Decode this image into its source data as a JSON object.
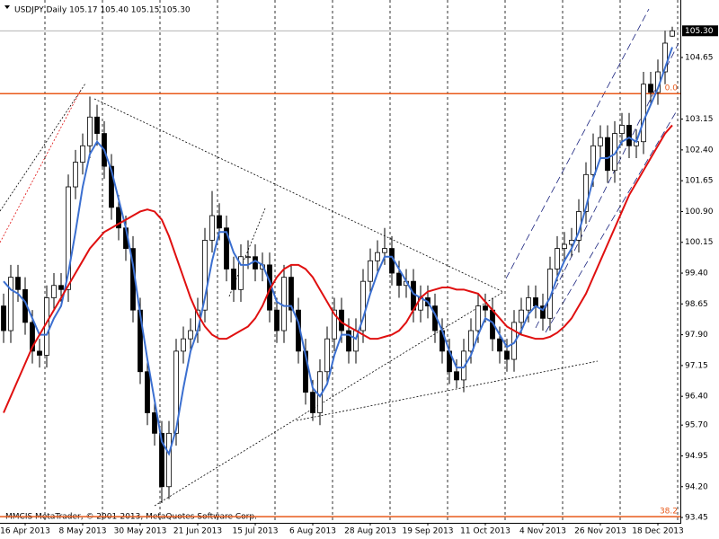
{
  "chart_data": {
    "type": "candlestick",
    "title": "USDJPY,Daily  105.17 105.40 105.15 105.30",
    "footer": "MMCIS MetaTrader, © 2001-2013, MetaQuotes Software Corp.",
    "categories": [
      null,
      null,
      null,
      "16 Apr 2013",
      null,
      null,
      null,
      null,
      null,
      null,
      null,
      "8 May 2013",
      null,
      null,
      null,
      null,
      null,
      null,
      null,
      "30 May 2013",
      null,
      null,
      null,
      null,
      null,
      null,
      null,
      "21 Jun 2013",
      null,
      null,
      null,
      null,
      null,
      null,
      null,
      "15 Jul 2013",
      null,
      null,
      null,
      null,
      null,
      null,
      null,
      "6 Aug 2013",
      null,
      null,
      null,
      null,
      null,
      null,
      null,
      "28 Aug 2013",
      null,
      null,
      null,
      null,
      null,
      null,
      null,
      "19 Sep 2013",
      null,
      null,
      null,
      null,
      null,
      null,
      null,
      "11 Oct 2013",
      null,
      null,
      null,
      null,
      null,
      null,
      null,
      "4 Nov 2013",
      null,
      null,
      null,
      null,
      null,
      null,
      null,
      "26 Nov 2013",
      null,
      null,
      null,
      null,
      null,
      null,
      null,
      "18 Dec 2013",
      null,
      null
    ],
    "candles": [
      [
        98.6,
        98.9,
        97.7,
        98.0
      ],
      [
        98.0,
        99.6,
        97.7,
        99.3
      ],
      [
        99.3,
        99.6,
        98.7,
        99.0
      ],
      [
        99.0,
        99.3,
        97.9,
        98.2
      ],
      [
        98.2,
        98.5,
        97.2,
        97.5
      ],
      [
        97.5,
        97.8,
        97.1,
        97.4
      ],
      [
        97.4,
        99.1,
        97.1,
        98.8
      ],
      [
        98.8,
        99.4,
        98.5,
        99.1
      ],
      [
        99.1,
        99.4,
        98.7,
        99.0
      ],
      [
        99.0,
        101.8,
        98.7,
        101.5
      ],
      [
        101.5,
        102.4,
        101.2,
        102.1
      ],
      [
        102.1,
        102.8,
        101.8,
        102.5
      ],
      [
        102.5,
        103.7,
        102.2,
        103.2
      ],
      [
        103.2,
        103.5,
        102.5,
        102.8
      ],
      [
        102.8,
        103.1,
        101.7,
        102.0
      ],
      [
        102.0,
        102.3,
        100.7,
        101.0
      ],
      [
        101.0,
        101.3,
        100.2,
        100.5
      ],
      [
        100.5,
        100.8,
        99.7,
        100.0
      ],
      [
        100.0,
        100.3,
        98.2,
        98.5
      ],
      [
        98.5,
        98.8,
        96.7,
        97.0
      ],
      [
        97.0,
        97.3,
        95.7,
        96.0
      ],
      [
        96.0,
        96.3,
        95.2,
        95.5
      ],
      [
        95.5,
        95.8,
        93.8,
        94.2
      ],
      [
        94.2,
        95.8,
        93.9,
        95.5
      ],
      [
        95.5,
        97.8,
        95.2,
        97.5
      ],
      [
        97.5,
        98.1,
        97.2,
        97.8
      ],
      [
        97.8,
        98.3,
        97.5,
        98.0
      ],
      [
        98.0,
        98.8,
        97.7,
        98.5
      ],
      [
        98.5,
        100.5,
        98.2,
        100.2
      ],
      [
        100.2,
        101.4,
        99.9,
        100.8
      ],
      [
        100.8,
        101.1,
        100.2,
        100.5
      ],
      [
        100.5,
        100.8,
        99.2,
        99.5
      ],
      [
        99.5,
        99.8,
        98.7,
        99.0
      ],
      [
        99.0,
        100.1,
        98.7,
        99.8
      ],
      [
        99.8,
        100.2,
        99.5,
        99.8
      ],
      [
        99.8,
        100.1,
        99.2,
        99.5
      ],
      [
        99.5,
        99.9,
        99.2,
        99.6
      ],
      [
        99.6,
        99.9,
        98.2,
        98.5
      ],
      [
        98.5,
        98.8,
        97.7,
        98.0
      ],
      [
        98.0,
        99.6,
        97.7,
        99.3
      ],
      [
        99.3,
        99.6,
        98.2,
        98.5
      ],
      [
        98.5,
        98.8,
        97.2,
        97.5
      ],
      [
        97.5,
        97.8,
        96.2,
        96.5
      ],
      [
        96.5,
        96.8,
        95.8,
        96.0
      ],
      [
        96.0,
        97.3,
        95.7,
        97.0
      ],
      [
        97.0,
        98.1,
        96.7,
        97.8
      ],
      [
        97.8,
        98.8,
        97.5,
        98.5
      ],
      [
        98.5,
        98.8,
        97.7,
        98.0
      ],
      [
        98.0,
        98.3,
        97.2,
        97.5
      ],
      [
        97.5,
        98.3,
        97.2,
        98.0
      ],
      [
        98.0,
        99.5,
        97.7,
        99.2
      ],
      [
        99.2,
        100.0,
        98.9,
        99.7
      ],
      [
        99.7,
        100.2,
        99.4,
        99.9
      ],
      [
        99.9,
        100.5,
        99.6,
        100.0
      ],
      [
        100.0,
        100.3,
        99.1,
        99.4
      ],
      [
        99.4,
        99.7,
        98.8,
        99.1
      ],
      [
        99.1,
        99.5,
        98.8,
        99.2
      ],
      [
        99.2,
        99.5,
        98.2,
        98.5
      ],
      [
        98.5,
        99.1,
        98.2,
        98.8
      ],
      [
        98.8,
        99.1,
        98.3,
        98.6
      ],
      [
        98.6,
        98.9,
        97.7,
        98.0
      ],
      [
        98.0,
        98.3,
        97.2,
        97.5
      ],
      [
        97.5,
        97.8,
        96.7,
        97.0
      ],
      [
        97.0,
        97.3,
        96.6,
        96.8
      ],
      [
        96.8,
        97.8,
        96.5,
        97.5
      ],
      [
        97.5,
        98.3,
        97.2,
        98.0
      ],
      [
        98.0,
        98.9,
        97.7,
        98.6
      ],
      [
        98.6,
        98.9,
        98.2,
        98.5
      ],
      [
        98.5,
        98.8,
        97.5,
        97.8
      ],
      [
        97.8,
        98.1,
        97.2,
        97.5
      ],
      [
        97.5,
        97.8,
        97.0,
        97.3
      ],
      [
        97.3,
        98.5,
        97.0,
        98.2
      ],
      [
        98.2,
        98.8,
        97.9,
        98.5
      ],
      [
        98.5,
        99.1,
        98.2,
        98.8
      ],
      [
        98.8,
        99.1,
        98.3,
        98.6
      ],
      [
        98.6,
        98.9,
        98.0,
        98.3
      ],
      [
        98.3,
        99.8,
        98.0,
        99.5
      ],
      [
        99.5,
        100.3,
        99.2,
        100.0
      ],
      [
        100.0,
        100.4,
        99.7,
        100.1
      ],
      [
        100.1,
        100.5,
        99.8,
        100.2
      ],
      [
        100.2,
        101.2,
        99.9,
        100.9
      ],
      [
        100.9,
        102.1,
        100.6,
        101.8
      ],
      [
        101.8,
        102.8,
        101.5,
        102.5
      ],
      [
        102.5,
        103.0,
        102.2,
        102.7
      ],
      [
        102.7,
        103.0,
        101.6,
        101.9
      ],
      [
        101.9,
        103.1,
        101.6,
        102.8
      ],
      [
        102.8,
        103.3,
        102.5,
        103.0
      ],
      [
        103.0,
        103.3,
        102.2,
        102.5
      ],
      [
        102.5,
        102.9,
        102.2,
        102.6
      ],
      [
        102.6,
        104.3,
        102.3,
        104.0
      ],
      [
        104.0,
        104.3,
        103.5,
        103.8
      ],
      [
        103.8,
        104.6,
        103.5,
        104.3
      ],
      [
        104.3,
        105.3,
        104.0,
        105.0
      ],
      [
        105.17,
        105.4,
        105.15,
        105.3
      ]
    ],
    "lines": [
      {
        "color": "#3b6fd0",
        "values": [
          99.2,
          99.0,
          98.9,
          98.7,
          98.3,
          97.9,
          97.9,
          98.3,
          98.6,
          99.4,
          100.4,
          101.5,
          102.3,
          102.6,
          102.4,
          101.9,
          101.2,
          100.5,
          99.6,
          98.4,
          97.3,
          96.3,
          95.3,
          95.0,
          95.6,
          96.6,
          97.5,
          98.0,
          98.8,
          99.7,
          100.4,
          100.4,
          99.9,
          99.6,
          99.6,
          99.7,
          99.6,
          99.2,
          98.7,
          98.6,
          98.6,
          98.2,
          97.4,
          96.6,
          96.4,
          96.7,
          97.4,
          97.9,
          97.9,
          97.8,
          98.3,
          98.9,
          99.4,
          99.8,
          99.8,
          99.5,
          99.2,
          98.9,
          98.8,
          98.7,
          98.4,
          98.0,
          97.5,
          97.1,
          97.1,
          97.4,
          97.9,
          98.3,
          98.2,
          97.9,
          97.6,
          97.7,
          98.0,
          98.4,
          98.6,
          98.5,
          98.8,
          99.3,
          99.7,
          100.0,
          100.4,
          101.0,
          101.7,
          102.2,
          102.2,
          102.3,
          102.6,
          102.7,
          102.6,
          103.1,
          103.5,
          103.9,
          104.4,
          104.9
        ]
      },
      {
        "color": "#e01010",
        "values": [
          96.0,
          96.4,
          96.8,
          97.2,
          97.6,
          97.9,
          98.2,
          98.5,
          98.8,
          99.1,
          99.4,
          99.7,
          100.0,
          100.2,
          100.4,
          100.5,
          100.6,
          100.7,
          100.8,
          100.9,
          100.95,
          100.9,
          100.7,
          100.3,
          99.8,
          99.3,
          98.8,
          98.4,
          98.1,
          97.9,
          97.8,
          97.8,
          97.9,
          98.0,
          98.1,
          98.3,
          98.6,
          99.0,
          99.3,
          99.5,
          99.6,
          99.6,
          99.5,
          99.3,
          99.0,
          98.7,
          98.4,
          98.2,
          98.1,
          98.0,
          97.9,
          97.8,
          97.8,
          97.85,
          97.9,
          98.0,
          98.2,
          98.5,
          98.8,
          98.95,
          99.0,
          99.05,
          99.05,
          99.0,
          99.0,
          98.95,
          98.9,
          98.7,
          98.5,
          98.3,
          98.1,
          98.0,
          97.9,
          97.85,
          97.8,
          97.8,
          97.85,
          97.95,
          98.1,
          98.3,
          98.6,
          98.9,
          99.3,
          99.7,
          100.1,
          100.5,
          100.9,
          101.3,
          101.6,
          101.9,
          102.2,
          102.5,
          102.8,
          103.0
        ]
      }
    ],
    "levels": [
      {
        "value": 103.77,
        "label": "0.0",
        "color": "#e8591a"
      },
      {
        "value": 93.47,
        "label": "38.2",
        "color": "#e8591a"
      }
    ],
    "last_price": {
      "value": 105.3,
      "label": "105.30"
    },
    "ylim": [
      93.32,
      106.05
    ],
    "yticks": [
      104.65,
      103.15,
      {
        "value": 102.4,
        "label": "102.40"
      },
      101.65,
      {
        "value": 100.9,
        "label": "100.90"
      },
      100.15,
      {
        "value": 99.4,
        "label": "99.40"
      },
      98.65,
      {
        "value": 97.9,
        "label": "97.90"
      },
      97.15,
      {
        "value": 96.4,
        "label": "96.40"
      },
      {
        "value": 95.7,
        "label": "95.70"
      },
      94.95,
      {
        "value": 94.2,
        "label": "94.20"
      },
      93.45
    ],
    "grid": true
  }
}
